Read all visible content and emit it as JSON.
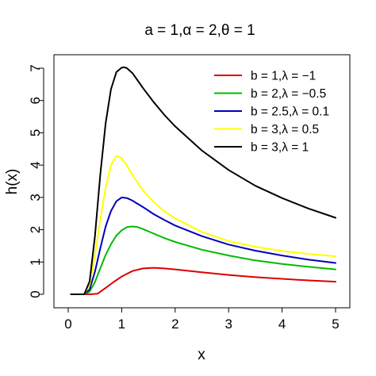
{
  "chart_data": {
    "type": "line",
    "title": "a = 1,α = 2,θ = 1",
    "xlabel": "x",
    "ylabel": "h(x)",
    "xlim": [
      0,
      5
    ],
    "ylim": [
      0,
      7
    ],
    "x_ticks": [
      "0",
      "1",
      "2",
      "3",
      "4",
      "5"
    ],
    "y_ticks": [
      "0",
      "1",
      "2",
      "3",
      "4",
      "5",
      "6",
      "7"
    ],
    "grid": false,
    "legend_position": "top-right",
    "series": [
      {
        "name": "b = 1,λ = −1",
        "color": "#dd0000",
        "x": [
          0.05,
          0.3,
          0.4,
          0.55,
          0.7,
          0.85,
          1.0,
          1.2,
          1.4,
          1.6,
          1.8,
          2.0,
          2.5,
          3.0,
          3.5,
          4.0,
          4.5,
          5.0
        ],
        "y": [
          0,
          0,
          0,
          0.02,
          0.2,
          0.38,
          0.55,
          0.72,
          0.8,
          0.82,
          0.8,
          0.77,
          0.68,
          0.6,
          0.53,
          0.48,
          0.43,
          0.39
        ]
      },
      {
        "name": "b = 2,λ = −0.5",
        "color": "#00bb00",
        "x": [
          0.05,
          0.3,
          0.4,
          0.5,
          0.6,
          0.7,
          0.8,
          0.9,
          1.0,
          1.1,
          1.2,
          1.3,
          1.4,
          1.6,
          1.8,
          2.0,
          2.5,
          3.0,
          3.5,
          4.0,
          4.5,
          5.0
        ],
        "y": [
          0,
          0,
          0.08,
          0.38,
          0.8,
          1.22,
          1.55,
          1.82,
          1.98,
          2.08,
          2.1,
          2.08,
          2.02,
          1.88,
          1.74,
          1.62,
          1.38,
          1.2,
          1.05,
          0.94,
          0.85,
          0.77
        ]
      },
      {
        "name": "b = 2.5,λ = 0.1",
        "color": "#0000bb",
        "x": [
          0.05,
          0.3,
          0.4,
          0.5,
          0.6,
          0.7,
          0.8,
          0.9,
          1.0,
          1.1,
          1.2,
          1.3,
          1.4,
          1.6,
          1.8,
          2.0,
          2.5,
          3.0,
          3.5,
          4.0,
          4.5,
          5.0
        ],
        "y": [
          0,
          0,
          0.15,
          0.7,
          1.42,
          2.1,
          2.58,
          2.88,
          3.0,
          2.98,
          2.9,
          2.8,
          2.7,
          2.48,
          2.3,
          2.13,
          1.8,
          1.54,
          1.35,
          1.2,
          1.07,
          0.97
        ]
      },
      {
        "name": "b = 3,λ = 0.5",
        "color": "#ffff00",
        "x": [
          0.05,
          0.3,
          0.4,
          0.5,
          0.6,
          0.7,
          0.8,
          0.9,
          1.0,
          1.1,
          1.2,
          1.3,
          1.4,
          1.6,
          1.8,
          2.0,
          2.5,
          3.0,
          3.5,
          4.0,
          4.5,
          5.0
        ],
        "y": [
          0,
          0,
          0.3,
          1.2,
          2.3,
          3.3,
          4.0,
          4.28,
          4.22,
          3.98,
          3.7,
          3.45,
          3.22,
          2.85,
          2.57,
          2.35,
          1.93,
          1.65,
          1.47,
          1.34,
          1.25,
          1.18
        ]
      },
      {
        "name": "b = 3,λ = 1",
        "color": "#000000",
        "x": [
          0.05,
          0.3,
          0.4,
          0.5,
          0.6,
          0.7,
          0.8,
          0.9,
          1.0,
          1.05,
          1.1,
          1.2,
          1.3,
          1.4,
          1.6,
          1.8,
          2.0,
          2.5,
          3.0,
          3.5,
          4.0,
          4.5,
          5.0
        ],
        "y": [
          0,
          0,
          0.4,
          1.8,
          3.7,
          5.3,
          6.35,
          6.88,
          7.02,
          7.03,
          7.0,
          6.85,
          6.62,
          6.38,
          5.95,
          5.55,
          5.2,
          4.45,
          3.85,
          3.36,
          2.98,
          2.65,
          2.37
        ]
      }
    ]
  }
}
